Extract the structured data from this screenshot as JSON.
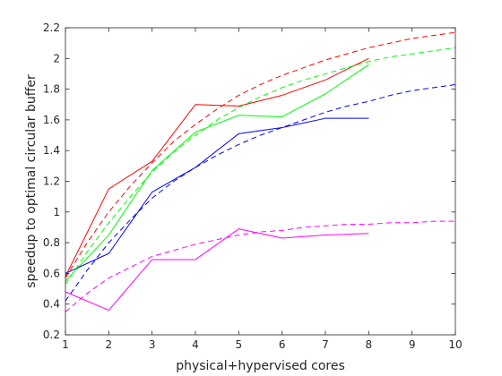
{
  "chart_data": {
    "type": "line",
    "title": "",
    "xlabel": "physical+hypervised cores",
    "ylabel": "speedup to optimal circular buffer",
    "xlim": [
      1,
      10
    ],
    "ylim": [
      0.2,
      2.2
    ],
    "xticks": [
      1,
      2,
      3,
      4,
      5,
      6,
      7,
      8,
      9,
      10
    ],
    "yticks": [
      0.2,
      0.4,
      0.6,
      0.8,
      1,
      1.2,
      1.4,
      1.6,
      1.8,
      2,
      2.2
    ],
    "xtick_labels": [
      "1",
      "2",
      "3",
      "4",
      "5",
      "6",
      "7",
      "8",
      "9",
      "10"
    ],
    "ytick_labels": [
      "0.2",
      "0.4",
      "0.6",
      "0.8",
      "1",
      "1.2",
      "1.4",
      "1.6",
      "1.8",
      "2",
      "2.2"
    ],
    "grid": false,
    "box": true,
    "series": [
      {
        "color": "#ff0000",
        "style": "solid",
        "x": [
          1,
          2,
          3,
          4,
          5,
          6,
          7,
          8
        ],
        "y": [
          0.58,
          1.15,
          1.33,
          1.7,
          1.69,
          1.76,
          1.86,
          2.0
        ]
      },
      {
        "color": "#00ff00",
        "style": "solid",
        "x": [
          1,
          2,
          3,
          4,
          5,
          6,
          7,
          8
        ],
        "y": [
          0.55,
          0.85,
          1.27,
          1.52,
          1.63,
          1.62,
          1.77,
          1.96
        ]
      },
      {
        "color": "#0000ff",
        "style": "solid",
        "x": [
          1,
          2,
          3,
          4,
          5,
          6,
          7,
          8
        ],
        "y": [
          0.6,
          0.73,
          1.13,
          1.29,
          1.51,
          1.55,
          1.61,
          1.61
        ]
      },
      {
        "color": "#ff00ff",
        "style": "solid",
        "x": [
          1,
          2,
          3,
          4,
          5,
          6,
          7,
          8
        ],
        "y": [
          0.48,
          0.36,
          0.69,
          0.69,
          0.89,
          0.83,
          0.85,
          0.86
        ]
      },
      {
        "color": "#ff0000",
        "style": "dashed",
        "x": [
          1,
          1.5,
          2,
          2.5,
          3,
          3.5,
          4,
          4.5,
          5,
          5.5,
          6,
          6.5,
          7,
          7.5,
          8,
          8.5,
          9,
          9.5,
          10
        ],
        "y": [
          0.57,
          0.8,
          1.0,
          1.17,
          1.32,
          1.46,
          1.57,
          1.67,
          1.76,
          1.83,
          1.89,
          1.94,
          1.99,
          2.03,
          2.07,
          2.1,
          2.13,
          2.15,
          2.17
        ]
      },
      {
        "color": "#00ff00",
        "style": "dashed",
        "x": [
          1,
          1.5,
          2,
          2.5,
          3,
          3.5,
          4,
          4.5,
          5,
          5.5,
          6,
          6.5,
          7,
          7.5,
          8,
          8.5,
          9,
          9.5,
          10
        ],
        "y": [
          0.53,
          0.74,
          0.93,
          1.1,
          1.26,
          1.39,
          1.5,
          1.6,
          1.68,
          1.75,
          1.81,
          1.86,
          1.9,
          1.94,
          1.98,
          2.01,
          2.03,
          2.05,
          2.07
        ]
      },
      {
        "color": "#0000ff",
        "style": "dashed",
        "x": [
          1,
          1.5,
          2,
          2.5,
          3,
          3.5,
          4,
          4.5,
          5,
          5.5,
          6,
          6.5,
          7,
          7.5,
          8,
          8.5,
          9,
          9.5,
          10
        ],
        "y": [
          0.42,
          0.62,
          0.8,
          0.95,
          1.09,
          1.2,
          1.29,
          1.37,
          1.44,
          1.5,
          1.55,
          1.6,
          1.65,
          1.69,
          1.72,
          1.76,
          1.79,
          1.81,
          1.83
        ]
      },
      {
        "color": "#ff00ff",
        "style": "dashed",
        "x": [
          1,
          1.5,
          2,
          2.5,
          3,
          3.5,
          4,
          4.5,
          5,
          5.5,
          6,
          6.5,
          7,
          7.5,
          8,
          8.5,
          9,
          9.5,
          10
        ],
        "y": [
          0.35,
          0.47,
          0.57,
          0.64,
          0.71,
          0.75,
          0.79,
          0.82,
          0.85,
          0.87,
          0.88,
          0.9,
          0.91,
          0.92,
          0.92,
          0.93,
          0.93,
          0.94,
          0.94
        ]
      }
    ]
  }
}
